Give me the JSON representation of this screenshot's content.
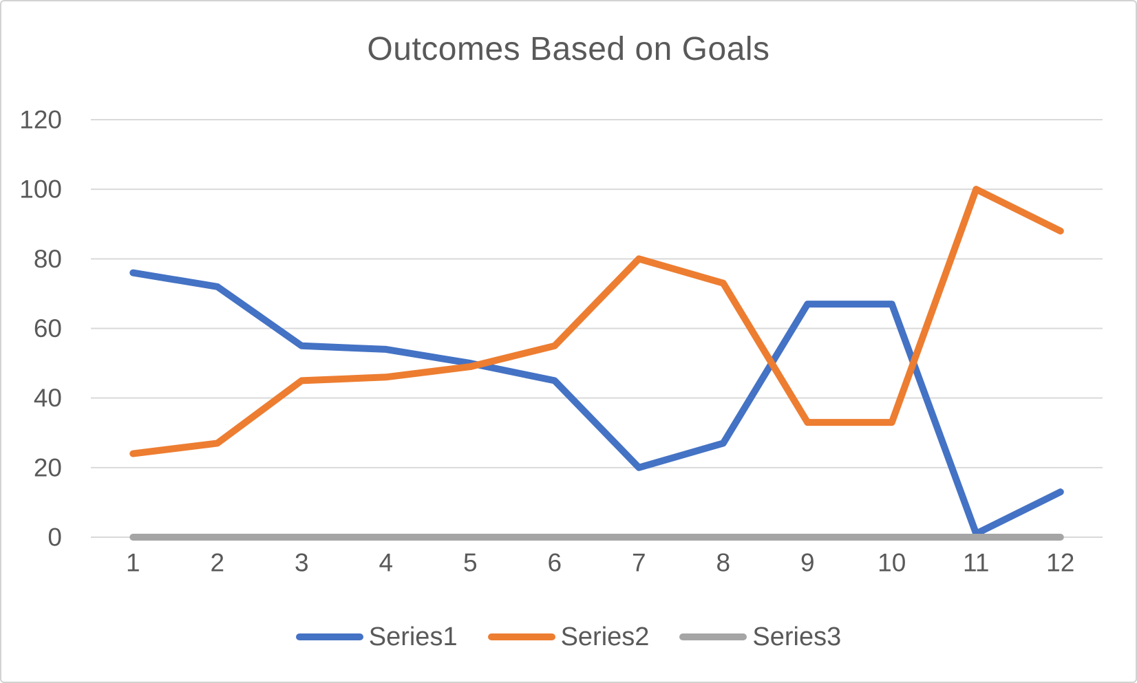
{
  "chart_data": {
    "type": "line",
    "title": "Outcomes Based on Goals",
    "categories": [
      "1",
      "2",
      "3",
      "4",
      "5",
      "6",
      "7",
      "8",
      "9",
      "10",
      "11",
      "12"
    ],
    "series": [
      {
        "name": "Series1",
        "color": "#4472C4",
        "values": [
          76,
          72,
          55,
          54,
          50,
          45,
          20,
          27,
          67,
          67,
          1,
          13
        ]
      },
      {
        "name": "Series2",
        "color": "#ED7D31",
        "values": [
          24,
          27,
          45,
          46,
          49,
          55,
          80,
          73,
          33,
          33,
          100,
          88
        ]
      },
      {
        "name": "Series3",
        "color": "#A5A5A5",
        "values": [
          0,
          0,
          0,
          0,
          0,
          0,
          0,
          0,
          0,
          0,
          0,
          0
        ]
      }
    ],
    "y_ticks": [
      0,
      20,
      40,
      60,
      80,
      100,
      120
    ],
    "ylim": [
      0,
      120
    ],
    "xlabel": "",
    "ylabel": "",
    "grid": "horizontal",
    "legend_position": "bottom",
    "line_width": 10,
    "colors": {
      "gridline": "#D9D9D9",
      "axis_line": "#D9D9D9",
      "axis_text": "#595959",
      "title_text": "#595959",
      "card_border": "#D2D2D2",
      "background": "#FFFFFF"
    }
  }
}
